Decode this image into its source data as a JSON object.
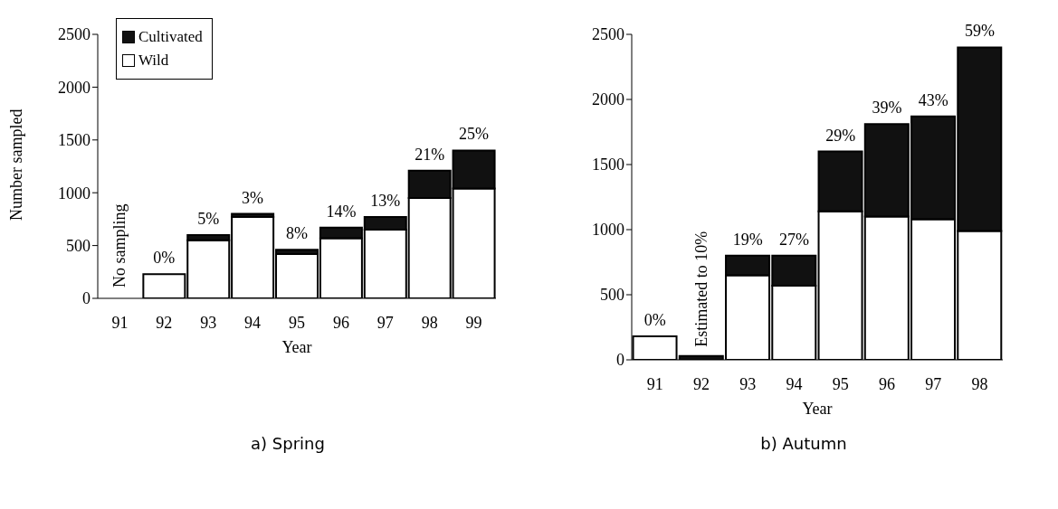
{
  "chart_data": [
    {
      "type": "bar",
      "title": "a) Spring",
      "xlabel": "Year",
      "ylabel": "Number sampled",
      "categories": [
        "91",
        "92",
        "93",
        "94",
        "95",
        "96",
        "97",
        "98",
        "99"
      ],
      "stacked": true,
      "ylim": [
        0,
        2500
      ],
      "yticks": [
        0,
        500,
        1000,
        1500,
        2000,
        2500
      ],
      "grid": false,
      "legend": "top left",
      "series": [
        {
          "name": "Wild",
          "color": "#ffffff",
          "values": [
            null,
            230,
            550,
            770,
            420,
            570,
            650,
            950,
            1040
          ]
        },
        {
          "name": "Cultivated",
          "color": "#111111",
          "values": [
            null,
            0,
            50,
            30,
            40,
            100,
            120,
            260,
            360
          ]
        }
      ],
      "annotations": [
        "No sampling",
        {
          "text": "0%",
          "x": "92",
          "y": 230
        },
        {
          "text": "5%",
          "x": "93",
          "y": 600
        },
        {
          "text": "3%",
          "x": "94",
          "y": 800
        },
        {
          "text": "8%",
          "x": "95",
          "y": 460
        },
        {
          "text": "14%",
          "x": "96",
          "y": 670
        },
        {
          "text": "13%",
          "x": "97",
          "y": 770
        },
        {
          "text": "21%",
          "x": "98",
          "y": 1210
        },
        {
          "text": "25%",
          "x": "99",
          "y": 1400
        }
      ]
    },
    {
      "type": "bar",
      "title": "b) Autumn",
      "xlabel": "Year",
      "categories": [
        "91",
        "92",
        "93",
        "94",
        "95",
        "96",
        "97",
        "98"
      ],
      "stacked": true,
      "ylim": [
        0,
        2500
      ],
      "yticks": [
        0,
        500,
        1000,
        1500,
        2000,
        2500
      ],
      "grid": false,
      "series": [
        {
          "color": "#ffffff",
          "values": [
            180,
            0,
            650,
            570,
            1140,
            1100,
            1080,
            990
          ]
        },
        {
          "color": "#111111",
          "values": [
            0,
            30,
            150,
            230,
            460,
            710,
            790,
            1410
          ]
        }
      ],
      "annotations": [
        {
          "text": "0%",
          "x": "91",
          "y": 180
        },
        {
          "text": "Estimated to 10%",
          "x": "92",
          "y": 30
        },
        {
          "text": "19%",
          "x": "93",
          "y": 800
        },
        {
          "text": "27%",
          "x": "94",
          "y": 800
        },
        {
          "text": "29%",
          "x": "95",
          "y": 1600
        },
        {
          "text": "39%",
          "x": "96",
          "y": 1810
        },
        {
          "text": "43%",
          "x": "97",
          "y": 1870
        },
        {
          "text": "59%",
          "x": "98",
          "y": 2400
        }
      ]
    }
  ]
}
